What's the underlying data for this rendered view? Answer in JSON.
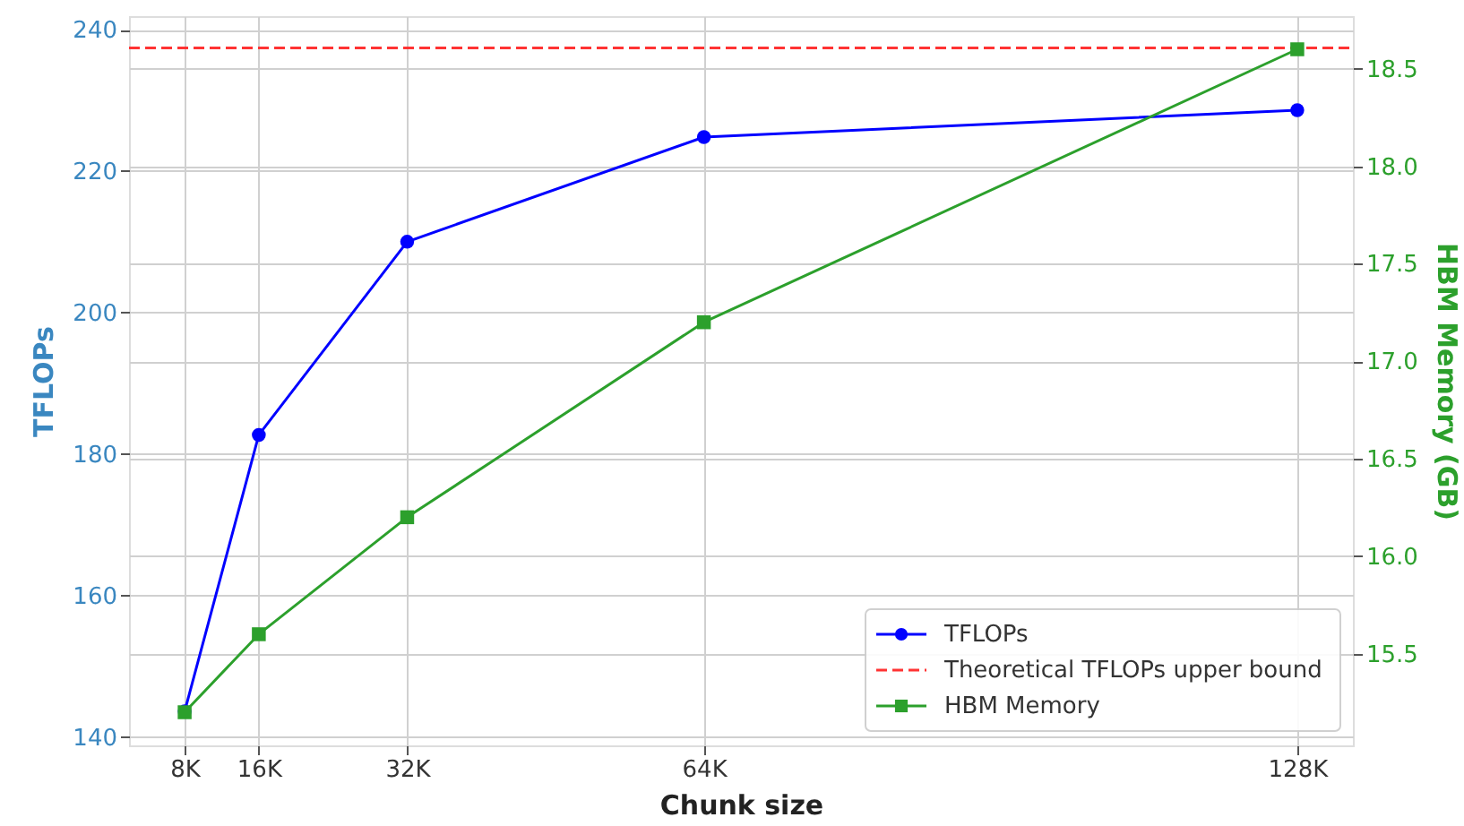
{
  "chart_data": {
    "type": "line",
    "xlabel": "Chunk size",
    "ylabel": "TFLOPs",
    "y2label": "HBM Memory (GB)",
    "x": [
      8,
      16,
      32,
      64,
      128
    ],
    "xlim": [
      2,
      134
    ],
    "xticks": [
      {
        "value": 8,
        "label": "8K"
      },
      {
        "value": 16,
        "label": "16K"
      },
      {
        "value": 32,
        "label": "32K"
      },
      {
        "value": 64,
        "label": "64K"
      },
      {
        "value": 128,
        "label": "128K"
      }
    ],
    "ylim": [
      138.8,
      241.9
    ],
    "yticks": [
      140,
      160,
      180,
      200,
      220,
      240
    ],
    "y2lim": [
      15.03,
      18.77
    ],
    "y2ticks": [
      {
        "value": 15.5,
        "label": "15.5"
      },
      {
        "value": 16,
        "label": "16.0"
      },
      {
        "value": 16.5,
        "label": "16.5"
      },
      {
        "value": 17,
        "label": "17.0"
      },
      {
        "value": 17.5,
        "label": "17.5"
      },
      {
        "value": 18,
        "label": "18.0"
      },
      {
        "value": 18.5,
        "label": "18.5"
      }
    ],
    "series": [
      {
        "name": "TFLOPs",
        "color": "#0000ff",
        "marker": "circle",
        "values": [
          143.6,
          182.7,
          210.0,
          224.8,
          228.6
        ]
      },
      {
        "name": "HBM Memory",
        "color": "#2ca02c",
        "marker": "square",
        "axis": "y2",
        "values": [
          15.2,
          15.6,
          16.2,
          17.2,
          18.6
        ]
      }
    ],
    "ref_lines": [
      {
        "axis": "y",
        "value": 237.4,
        "label": "Theoretical TFLOPs upper bound",
        "color": "#ff3333",
        "line_style": "dashed"
      }
    ],
    "grid": true,
    "legend": "bottom right"
  }
}
